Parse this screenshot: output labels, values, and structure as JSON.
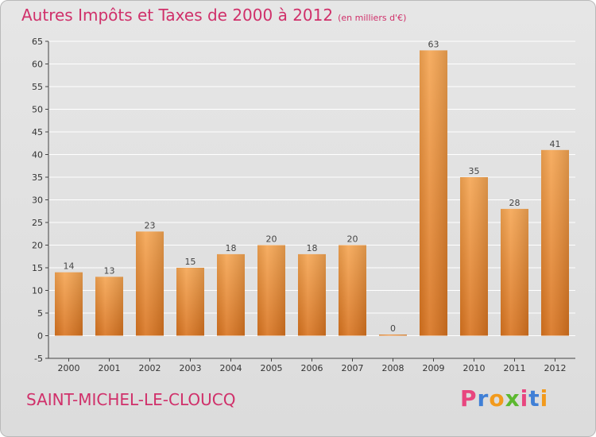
{
  "title": "Autres Impôts et Taxes de 2000 à 2012",
  "subtitle": "(en milliers d'€)",
  "commune": "SAINT-MICHEL-LE-CLOUCQ",
  "logo": {
    "text": "Proxiti",
    "colors": [
      "#e8467f",
      "#3f7fd6",
      "#f29a1c",
      "#5cb82f",
      "#e8467f",
      "#3f7fd6",
      "#f29a1c"
    ]
  },
  "colors": {
    "bar_light": "#f5a552",
    "bar_dark": "#d8731f",
    "title": "#d0306a",
    "grid": "#ffffff"
  },
  "chart_data": {
    "type": "bar",
    "title": "Autres Impôts et Taxes de 2000 à 2012",
    "subtitle": "(en milliers d'€)",
    "categories": [
      "2000",
      "2001",
      "2002",
      "2003",
      "2004",
      "2005",
      "2006",
      "2007",
      "2008",
      "2009",
      "2010",
      "2011",
      "2012"
    ],
    "values": [
      14,
      13,
      23,
      15,
      18,
      20,
      18,
      20,
      0,
      63,
      35,
      28,
      41
    ],
    "value_labels": [
      "14",
      "13",
      "23",
      "15",
      "18",
      "20",
      "18",
      "20",
      "0",
      "63",
      "35",
      "28",
      "41"
    ],
    "ylim": [
      -5,
      65
    ],
    "yticks": [
      -5,
      0,
      5,
      10,
      15,
      20,
      25,
      30,
      35,
      40,
      45,
      50,
      55,
      60,
      65
    ],
    "grid": true,
    "legend": "none"
  }
}
